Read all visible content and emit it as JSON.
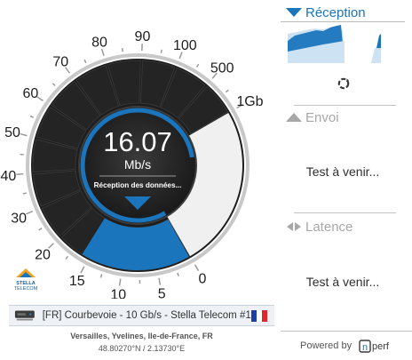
{
  "gauge": {
    "value": "16.07",
    "unit": "Mb/s",
    "status": "Réception des données...",
    "percent": "81%",
    "progress": 0.81,
    "colors": {
      "accent": "#1a75bc",
      "dark": "#222222",
      "light": "#f0f0f0"
    },
    "scale_labels": [
      "0",
      "5",
      "10",
      "15",
      "20",
      "30",
      "40",
      "50",
      "60",
      "70",
      "80",
      "90",
      "100",
      "500",
      "1Gb"
    ]
  },
  "logo": {
    "name": "STELLA TELECOM"
  },
  "server": {
    "label": "[FR] Courbevoie - 10 Gb/s - Stella Telecom #1",
    "icon": "server-icon",
    "flag": [
      "#1f3ea6",
      "#ffffff",
      "#e1262b"
    ]
  },
  "location": {
    "place": "Versailles, Yvelines, Ile-de-France, FR",
    "coords": "48.80270°N / 2.13730°E"
  },
  "sidebar": {
    "reception": {
      "label": "Réception",
      "icon": "download-triangle-icon"
    },
    "refresh_icon": "refresh-icon",
    "envoi": {
      "label": "Envoi",
      "icon": "upload-triangle-icon",
      "pending": "Test à venir..."
    },
    "latence": {
      "label": "Latence",
      "icon": "latency-arrows-icon",
      "pending": "Test à venir..."
    }
  },
  "footer": {
    "powered_by": "Powered by",
    "brand": "nPerf"
  }
}
